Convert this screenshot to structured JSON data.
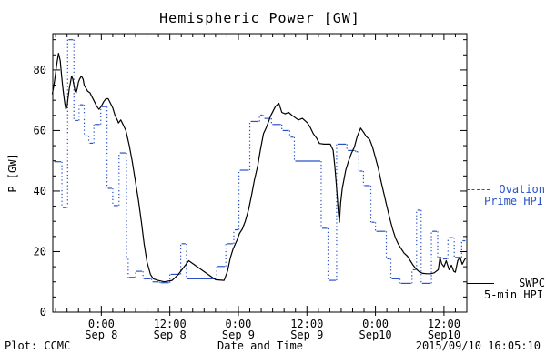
{
  "window": {
    "bg": "#ffffff"
  },
  "colors": {
    "ovation_blue": "#2952c8",
    "swpc_black": "#000000"
  },
  "legend": {
    "ovation_line1": "Ovation",
    "ovation_line2": "Prime HPI",
    "swpc_line1": "SWPC",
    "swpc_line2": "5-min HPI"
  },
  "footer": {
    "left": "Plot: CCMC",
    "right": "2015/09/10 16:05:10"
  },
  "chart_data": {
    "type": "line",
    "title": "Hemispheric Power [GW]",
    "xlabel": "Date and Time",
    "ylabel": "P [GW]",
    "xlim": [
      -8.5,
      64
    ],
    "ylim": [
      0,
      92
    ],
    "x_unit_hours_from": "Sep 8 0:00",
    "x_major_ticks": [
      0,
      12,
      24,
      36,
      48,
      60
    ],
    "x_major_tick_labels": [
      [
        "0:00",
        "Sep 8"
      ],
      [
        "12:00",
        "Sep 8"
      ],
      [
        "0:00",
        "Sep 9"
      ],
      [
        "12:00",
        "Sep 9"
      ],
      [
        "0:00",
        "Sep10"
      ],
      [
        "12:00",
        "Sep10"
      ]
    ],
    "x_minor_tick_hours": 2,
    "y_major_ticks": [
      0,
      20,
      40,
      60,
      80
    ],
    "y_major_tick_labels": [
      "0",
      "20",
      "40",
      "60",
      "80"
    ],
    "y_minor_tick": 5,
    "grid": false,
    "legend_position": "right-outside",
    "series": [
      {
        "name": "Ovation Prime HPI",
        "color": "#2952c8",
        "style": "steps-dotted-verticals",
        "points": [
          [
            -8.4,
            49.7
          ],
          [
            -6.9,
            34.5
          ],
          [
            -5.9,
            90
          ],
          [
            -4.8,
            63.3
          ],
          [
            -3.9,
            68.5
          ],
          [
            -3.0,
            58.2
          ],
          [
            -2.2,
            55.8
          ],
          [
            -1.3,
            62
          ],
          [
            -0.1,
            67.9
          ],
          [
            1.0,
            40.9
          ],
          [
            2.0,
            35.2
          ],
          [
            3.1,
            52.6
          ],
          [
            4.4,
            17.6
          ],
          [
            4.7,
            11.5
          ],
          [
            6.0,
            13.5
          ],
          [
            7.3,
            11.0
          ],
          [
            8.8,
            10.0
          ],
          [
            10.2,
            9.7
          ],
          [
            12.0,
            12.5
          ],
          [
            13.9,
            22.6
          ],
          [
            14.9,
            11.0
          ],
          [
            20.2,
            15.1
          ],
          [
            21.8,
            22.6
          ],
          [
            23.2,
            27.2
          ],
          [
            24.1,
            46.9
          ],
          [
            26.0,
            63.0
          ],
          [
            27.7,
            65.1
          ],
          [
            28.4,
            64.0
          ],
          [
            29.8,
            62.0
          ],
          [
            31.6,
            60.0
          ],
          [
            33.0,
            57.8
          ],
          [
            33.8,
            49.9
          ],
          [
            38.5,
            27.7
          ],
          [
            39.7,
            10.5
          ],
          [
            41.2,
            55.5
          ],
          [
            43.0,
            53.4
          ],
          [
            44.5,
            53.0
          ],
          [
            45.1,
            46.6
          ],
          [
            45.9,
            41.8
          ],
          [
            47.2,
            29.7
          ],
          [
            48.0,
            26.7
          ],
          [
            49.9,
            17.6
          ],
          [
            50.7,
            11.0
          ],
          [
            52.3,
            9.5
          ],
          [
            54.4,
            14.0
          ],
          [
            55.2,
            33.7
          ],
          [
            56.0,
            9.5
          ],
          [
            57.8,
            26.7
          ],
          [
            58.9,
            18.1
          ],
          [
            59.7,
            17.6
          ],
          [
            60.7,
            24.6
          ],
          [
            61.8,
            18.1
          ],
          [
            63.1,
            23.6
          ],
          [
            63.9,
            23.6
          ]
        ]
      },
      {
        "name": "SWPC 5-min HPI",
        "color": "#000000",
        "style": "solid",
        "points": [
          [
            -8.6,
            72
          ],
          [
            -8.3,
            75
          ],
          [
            -8.0,
            79
          ],
          [
            -7.8,
            82
          ],
          [
            -7.5,
            85.5
          ],
          [
            -7.2,
            83
          ],
          [
            -7.0,
            79
          ],
          [
            -6.8,
            75
          ],
          [
            -6.6,
            72
          ],
          [
            -6.4,
            69
          ],
          [
            -6.2,
            67
          ],
          [
            -6.0,
            68
          ],
          [
            -5.8,
            71
          ],
          [
            -5.6,
            74
          ],
          [
            -5.4,
            76
          ],
          [
            -5.2,
            78
          ],
          [
            -5.0,
            77
          ],
          [
            -4.8,
            75
          ],
          [
            -4.6,
            73
          ],
          [
            -4.4,
            72.5
          ],
          [
            -4.2,
            74
          ],
          [
            -4.0,
            76
          ],
          [
            -3.8,
            77
          ],
          [
            -3.5,
            78
          ],
          [
            -3.2,
            77
          ],
          [
            -3.0,
            75
          ],
          [
            -2.7,
            74
          ],
          [
            -2.4,
            73
          ],
          [
            -2.0,
            72.5
          ],
          [
            -1.6,
            71
          ],
          [
            -1.2,
            69.5
          ],
          [
            -0.8,
            68
          ],
          [
            -0.4,
            67
          ],
          [
            0.0,
            68
          ],
          [
            0.4,
            69.5
          ],
          [
            0.8,
            70.5
          ],
          [
            1.2,
            70.5
          ],
          [
            1.6,
            69
          ],
          [
            2.0,
            67.5
          ],
          [
            2.4,
            65
          ],
          [
            2.8,
            63.5
          ],
          [
            3.0,
            62.5
          ],
          [
            3.4,
            63.5
          ],
          [
            3.8,
            62
          ],
          [
            4.3,
            60
          ],
          [
            4.9,
            55
          ],
          [
            5.4,
            50
          ],
          [
            5.9,
            44
          ],
          [
            6.5,
            37
          ],
          [
            7.0,
            30
          ],
          [
            7.5,
            22.5
          ],
          [
            8.0,
            16.5
          ],
          [
            8.6,
            12.5
          ],
          [
            9.1,
            11
          ],
          [
            9.9,
            10.5
          ],
          [
            11.0,
            10
          ],
          [
            12.4,
            10.5
          ],
          [
            13.5,
            12.5
          ],
          [
            15.3,
            17
          ],
          [
            20.0,
            10.7
          ],
          [
            21.5,
            10.5
          ],
          [
            22.1,
            13.5
          ],
          [
            22.6,
            18
          ],
          [
            23.1,
            21
          ],
          [
            23.7,
            23.5
          ],
          [
            24.2,
            26
          ],
          [
            24.7,
            27.5
          ],
          [
            25.2,
            30
          ],
          [
            25.8,
            34
          ],
          [
            26.3,
            38.5
          ],
          [
            26.8,
            43.5
          ],
          [
            27.4,
            48.5
          ],
          [
            27.9,
            54
          ],
          [
            28.4,
            59
          ],
          [
            28.9,
            61
          ],
          [
            29.7,
            65
          ],
          [
            30.5,
            68
          ],
          [
            31.1,
            69
          ],
          [
            31.6,
            66
          ],
          [
            32.2,
            65.5
          ],
          [
            32.8,
            66
          ],
          [
            33.4,
            65
          ],
          [
            34.5,
            63.5
          ],
          [
            35.2,
            64
          ],
          [
            36.1,
            62.5
          ],
          [
            36.6,
            61
          ],
          [
            37.1,
            59
          ],
          [
            37.7,
            57.5
          ],
          [
            38.2,
            55.7
          ],
          [
            39.0,
            55.5
          ],
          [
            40.1,
            55.5
          ],
          [
            40.6,
            53.5
          ],
          [
            40.9,
            48
          ],
          [
            41.2,
            41
          ],
          [
            41.5,
            33
          ],
          [
            41.7,
            29.7
          ],
          [
            41.9,
            36
          ],
          [
            42.2,
            41
          ],
          [
            42.5,
            44
          ],
          [
            42.8,
            47
          ],
          [
            43.3,
            50
          ],
          [
            43.8,
            52.5
          ],
          [
            44.3,
            54.5
          ],
          [
            44.8,
            58
          ],
          [
            45.4,
            60.8
          ],
          [
            45.9,
            59.5
          ],
          [
            46.4,
            58
          ],
          [
            47.0,
            57
          ],
          [
            47.5,
            54.5
          ],
          [
            48.0,
            51
          ],
          [
            48.5,
            47.5
          ],
          [
            49.0,
            43
          ],
          [
            49.5,
            39
          ],
          [
            50.0,
            35
          ],
          [
            50.5,
            31
          ],
          [
            51.0,
            27.5
          ],
          [
            51.5,
            24.5
          ],
          [
            52.0,
            22.5
          ],
          [
            52.5,
            21
          ],
          [
            53.0,
            19.5
          ],
          [
            53.6,
            18.5
          ],
          [
            54.1,
            17
          ],
          [
            54.6,
            15.5
          ],
          [
            55.1,
            14.3
          ],
          [
            55.7,
            13.3
          ],
          [
            56.3,
            12.8
          ],
          [
            57.0,
            12.7
          ],
          [
            57.7,
            12.7
          ],
          [
            58.3,
            13
          ],
          [
            59.0,
            14
          ],
          [
            59.3,
            18
          ],
          [
            59.6,
            16
          ],
          [
            60.0,
            15
          ],
          [
            60.4,
            17
          ],
          [
            60.9,
            14
          ],
          [
            61.3,
            15.5
          ],
          [
            61.7,
            13.5
          ],
          [
            62.0,
            13.2
          ],
          [
            62.4,
            17
          ],
          [
            62.8,
            18.2
          ],
          [
            63.2,
            15.8
          ],
          [
            63.6,
            17.3
          ],
          [
            63.8,
            17.8
          ]
        ]
      }
    ]
  }
}
